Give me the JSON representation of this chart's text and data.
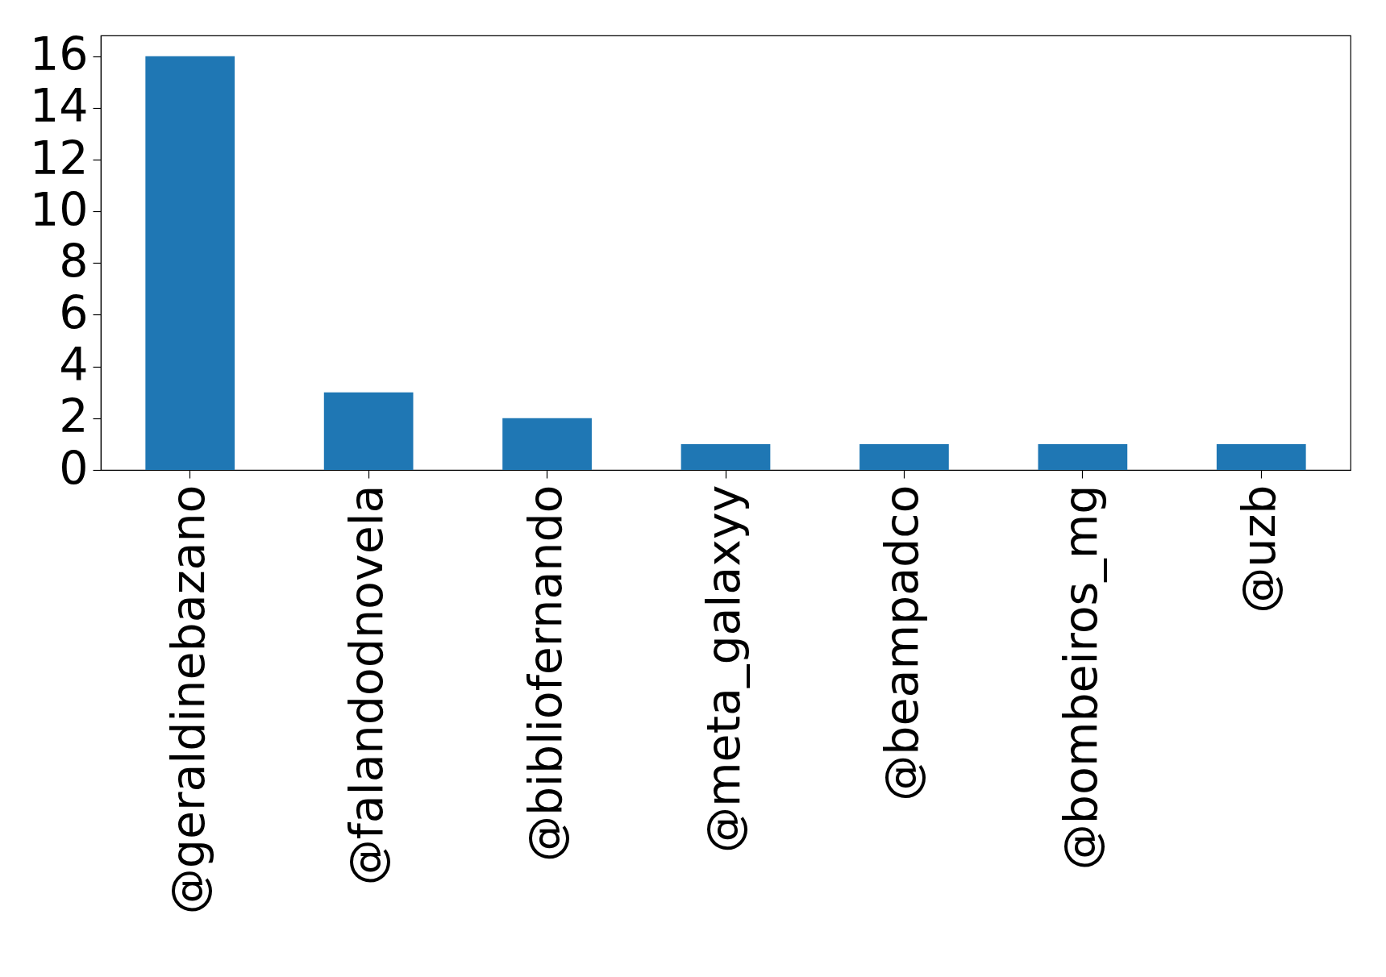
{
  "chart_data": {
    "type": "bar",
    "categories": [
      "@geraldinebazano",
      "@falandodnovela",
      "@bibliofernando",
      "@meta_galaxyy",
      "@beampadco",
      "@bombeiros_mg",
      "@uzb"
    ],
    "values": [
      16,
      3,
      2,
      1,
      1,
      1,
      1
    ],
    "color": "#1f77b4",
    "ylim": [
      0,
      16.8
    ],
    "yticks": [
      0,
      2,
      4,
      6,
      8,
      10,
      12,
      14,
      16
    ],
    "grid": false
  }
}
